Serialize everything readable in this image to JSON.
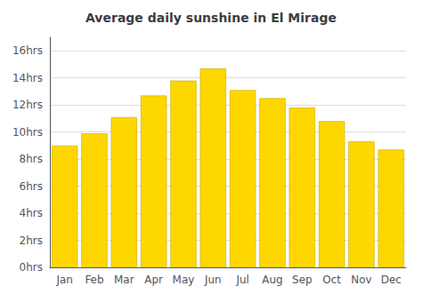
{
  "chart_data": {
    "type": "bar",
    "title": "Average daily sunshine in El Mirage",
    "categories": [
      "Jan",
      "Feb",
      "Mar",
      "Apr",
      "May",
      "Jun",
      "Jul",
      "Aug",
      "Sep",
      "Oct",
      "Nov",
      "Dec"
    ],
    "values": [
      9.0,
      9.9,
      11.1,
      12.7,
      13.8,
      14.7,
      13.1,
      12.5,
      11.8,
      10.8,
      9.3,
      8.7
    ],
    "color": "#FFD700",
    "ylim": [
      0,
      17.0
    ],
    "yticks": [
      {
        "value": 0,
        "label": "0hrs"
      },
      {
        "value": 2,
        "label": "2hrs"
      },
      {
        "value": 4,
        "label": "4hrs"
      },
      {
        "value": 6,
        "label": "6hrs"
      },
      {
        "value": 8,
        "label": "8hrs"
      },
      {
        "value": 10,
        "label": "10hrs"
      },
      {
        "value": 12,
        "label": "12hrs"
      },
      {
        "value": 14,
        "label": "14hrs"
      },
      {
        "value": 16,
        "label": "16hrs"
      }
    ],
    "grid": true
  }
}
